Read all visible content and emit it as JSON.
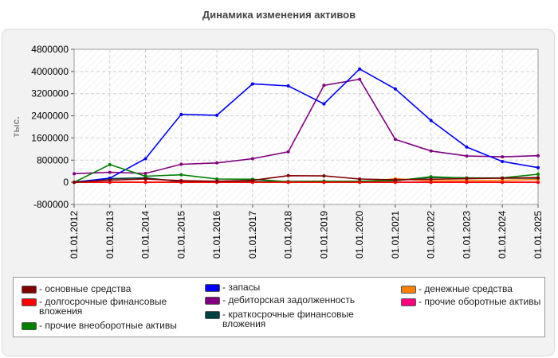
{
  "chart_data": {
    "type": "line",
    "title": "Динамика изменения активов",
    "ylabel": "тыс.",
    "xlabel": "",
    "ylim": [
      -800000,
      4800000
    ],
    "yticks": [
      -800000,
      0,
      800000,
      1600000,
      2400000,
      3200000,
      4000000,
      4800000
    ],
    "ytick_labels": [
      "-800000",
      "0",
      "800000",
      "1600000",
      "2400000",
      "3200000",
      "4000000",
      "4800000"
    ],
    "x": [
      "01.01.2012",
      "01.01.2013",
      "01.01.2014",
      "01.01.2015",
      "01.01.2016",
      "01.01.2017",
      "01.01.2018",
      "01.01.2019",
      "01.01.2020",
      "01.01.2021",
      "01.01.2022",
      "01.01.2023",
      "01.01.2024",
      "01.01.2025"
    ],
    "grid": true,
    "legend_position": "bottom",
    "series": [
      {
        "name": "основные средства",
        "color": "#800000",
        "values": [
          0,
          80000,
          120000,
          60000,
          40000,
          70000,
          240000,
          230000,
          120000,
          90000,
          110000,
          130000,
          150000,
          170000
        ]
      },
      {
        "name": "долгосрочные финансовые вложения",
        "color": "#ff0000",
        "values": [
          0,
          0,
          0,
          0,
          0,
          0,
          0,
          0,
          0,
          0,
          0,
          0,
          0,
          0
        ]
      },
      {
        "name": "прочие внеоборотные активы",
        "color": "#008000",
        "values": [
          0,
          640000,
          220000,
          270000,
          120000,
          110000,
          20000,
          40000,
          40000,
          60000,
          200000,
          150000,
          160000,
          290000
        ]
      },
      {
        "name": "запасы",
        "color": "#0000ff",
        "values": [
          0,
          150000,
          850000,
          2450000,
          2420000,
          3550000,
          3480000,
          2830000,
          4090000,
          3370000,
          2230000,
          1270000,
          750000,
          530000
        ]
      },
      {
        "name": "дебиторская задолженность",
        "color": "#800080",
        "values": [
          310000,
          360000,
          320000,
          650000,
          700000,
          850000,
          1100000,
          3500000,
          3720000,
          1550000,
          1130000,
          950000,
          920000,
          960000
        ]
      },
      {
        "name": "краткосрочные финансовые вложения",
        "color": "#004040",
        "values": [
          0,
          130000,
          160000,
          20000,
          20000,
          20000,
          30000,
          40000,
          40000,
          60000,
          180000,
          160000,
          150000,
          150000
        ]
      },
      {
        "name": "денежные средства",
        "color": "#ff8000",
        "values": [
          0,
          0,
          0,
          0,
          0,
          0,
          0,
          0,
          0,
          130000,
          50000,
          60000,
          70000,
          100000
        ]
      },
      {
        "name": "прочие оборотные активы",
        "color": "#ff0080",
        "values": [
          0,
          0,
          0,
          0,
          0,
          0,
          0,
          0,
          0,
          0,
          0,
          0,
          0,
          0
        ]
      }
    ]
  }
}
